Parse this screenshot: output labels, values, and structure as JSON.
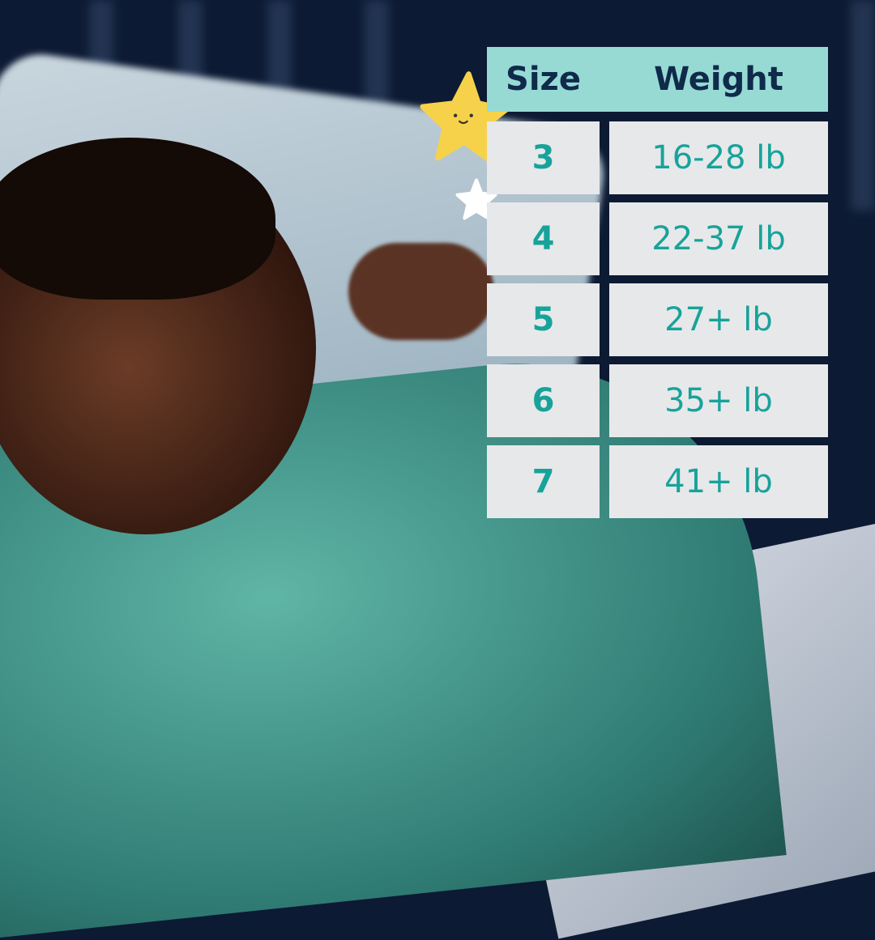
{
  "table": {
    "headers": [
      "Size",
      "Weight"
    ],
    "rows": [
      {
        "size": "3",
        "weight": "16-28 lb"
      },
      {
        "size": "4",
        "weight": "22-37 lb"
      },
      {
        "size": "5",
        "weight": "27+ lb"
      },
      {
        "size": "6",
        "weight": "35+ lb"
      },
      {
        "size": "7",
        "weight": "41+ lb"
      }
    ]
  },
  "colors": {
    "header_bg": "#97dad4",
    "header_text": "#0f2a4a",
    "cell_bg": "#e7e8ea",
    "value_text": "#17a39a",
    "star": "#f6d24a"
  }
}
